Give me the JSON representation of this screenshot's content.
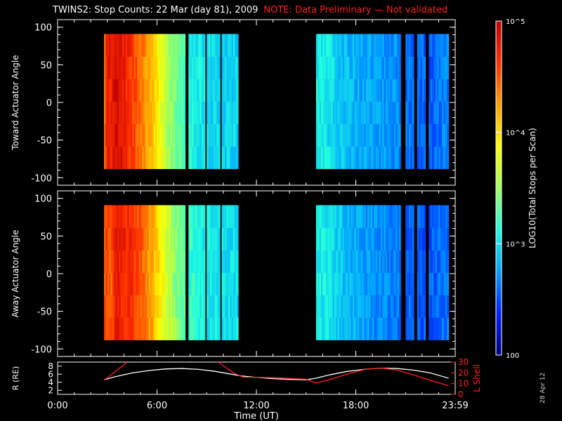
{
  "title": "TWINS2: Stop Counts: 22 Mar (day  81), 2009",
  "note": "NOTE: Data Preliminary — Not validated",
  "date_stamp": "28 Apr 12",
  "colorbar": {
    "label": "LOG10(Total Stops per Scan)",
    "ticks": [
      "10^5",
      "10^4",
      "10^3",
      "100"
    ],
    "colormap": [
      "#00007f",
      "#0020ff",
      "#00a0ff",
      "#20ffe0",
      "#a0ff60",
      "#ffff00",
      "#ffa000",
      "#ff3000",
      "#c00000"
    ]
  },
  "chart_data": [
    {
      "type": "heatmap",
      "panel": "toward",
      "title": "",
      "xlabel": "",
      "ylabel": "Toward Actuator Angle",
      "xlim": [
        0,
        24
      ],
      "ylim": [
        -110,
        110
      ],
      "yticks": [
        100,
        50,
        0,
        -50,
        -100
      ],
      "log_color_range": [
        2,
        5
      ],
      "y_coverage": [
        -88,
        91
      ],
      "data_intervals_ut": [
        [
          2.8,
          10.8
        ],
        [
          15.6,
          23.6
        ]
      ],
      "gaps_ut": [
        [
          7.6,
          7.8
        ],
        [
          8.8,
          8.95
        ],
        [
          9.7,
          9.85
        ],
        [
          20.7,
          20.95
        ],
        [
          21.5,
          21.7
        ],
        [
          22.2,
          22.35
        ]
      ],
      "time_profile": {
        "t": [
          2.8,
          3.0,
          3.2,
          3.5,
          4.0,
          4.5,
          5.0,
          5.5,
          6.0,
          6.5,
          7.0,
          7.6,
          8.0,
          9.0,
          10.0,
          10.8,
          15.6,
          16.5,
          17.5,
          18.5,
          19.5,
          20.5,
          21.5,
          22.5,
          23.6
        ],
        "log_counts": [
          4.3,
          4.85,
          4.7,
          4.9,
          4.75,
          4.6,
          4.45,
          4.2,
          3.95,
          3.65,
          3.4,
          3.25,
          3.1,
          3.0,
          2.95,
          2.95,
          3.1,
          3.0,
          2.85,
          2.8,
          2.75,
          2.7,
          2.6,
          2.55,
          2.7
        ]
      }
    },
    {
      "type": "heatmap",
      "panel": "away",
      "title": "",
      "xlabel": "",
      "ylabel": "Away Actuator Angle",
      "xlim": [
        0,
        24
      ],
      "ylim": [
        -110,
        110
      ],
      "yticks": [
        100,
        50,
        0,
        -50,
        -100
      ],
      "log_color_range": [
        2,
        5
      ],
      "y_coverage": [
        -88,
        91
      ],
      "data_intervals_ut": [
        [
          2.8,
          10.8
        ],
        [
          15.6,
          23.6
        ]
      ],
      "gaps_ut": [
        [
          7.6,
          7.8
        ],
        [
          8.8,
          8.95
        ],
        [
          9.7,
          9.85
        ],
        [
          20.7,
          20.95
        ],
        [
          21.5,
          21.7
        ],
        [
          22.2,
          22.35
        ]
      ],
      "time_profile": {
        "t": [
          2.8,
          3.0,
          3.2,
          3.5,
          4.0,
          4.5,
          5.0,
          5.5,
          6.0,
          6.5,
          7.0,
          7.6,
          8.0,
          9.0,
          10.0,
          10.8,
          15.6,
          16.5,
          17.5,
          18.5,
          19.5,
          20.5,
          21.5,
          22.5,
          23.6
        ],
        "log_counts": [
          4.5,
          4.6,
          4.4,
          4.8,
          4.7,
          4.65,
          4.5,
          4.3,
          4.05,
          3.75,
          3.5,
          3.3,
          3.2,
          3.05,
          3.0,
          3.0,
          3.1,
          3.0,
          2.85,
          2.75,
          2.7,
          2.65,
          2.55,
          2.55,
          2.65
        ]
      }
    },
    {
      "type": "line",
      "panel": "orbit",
      "title": "",
      "xlabel": "Time (UT)",
      "ylabel": "R (RE)",
      "y2label": "L Shell",
      "xlim": [
        0,
        24
      ],
      "xticks": [
        "0:00",
        "6:00",
        "12:00",
        "18:00",
        "23:59"
      ],
      "xtick_values": [
        0,
        6,
        12,
        18,
        24
      ],
      "ylim": [
        1,
        9
      ],
      "yticks": [
        8,
        6,
        4,
        2
      ],
      "y2lim": [
        0,
        30
      ],
      "y2ticks": [
        30,
        20,
        10,
        0
      ],
      "series": [
        {
          "axis": "left",
          "color": "#ffffff",
          "x": [
            2.8,
            3.5,
            4.5,
            5.5,
            6.5,
            7.5,
            8.5,
            9.5,
            10.5,
            11.0,
            12.0,
            13.0,
            14.0,
            15.0,
            15.6,
            16.5,
            17.5,
            18.5,
            19.5,
            20.5,
            21.5,
            22.5,
            23.6
          ],
          "y": [
            4.6,
            5.4,
            6.3,
            6.9,
            7.3,
            7.4,
            7.2,
            6.7,
            6.0,
            5.6,
            5.2,
            4.9,
            4.7,
            4.6,
            5.0,
            5.9,
            6.7,
            7.2,
            7.5,
            7.4,
            7.0,
            6.3,
            5.0
          ]
        },
        {
          "axis": "right",
          "color": "#ff2020",
          "segments": [
            {
              "x": [
                2.8,
                4.2
              ],
              "y": [
                13,
                31
              ]
            },
            {
              "x": [
                9.7,
                10.6,
                11.2,
                13.0,
                15.0,
                15.6,
                16.5,
                17.5,
                18.5,
                19.5,
                20.5,
                21.5,
                22.5,
                23.6
              ],
              "y": [
                31,
                20,
                16,
                15.5,
                14,
                10.5,
                14,
                19,
                23,
                24.5,
                22.5,
                18,
                13,
                8
              ]
            }
          ]
        }
      ]
    }
  ]
}
